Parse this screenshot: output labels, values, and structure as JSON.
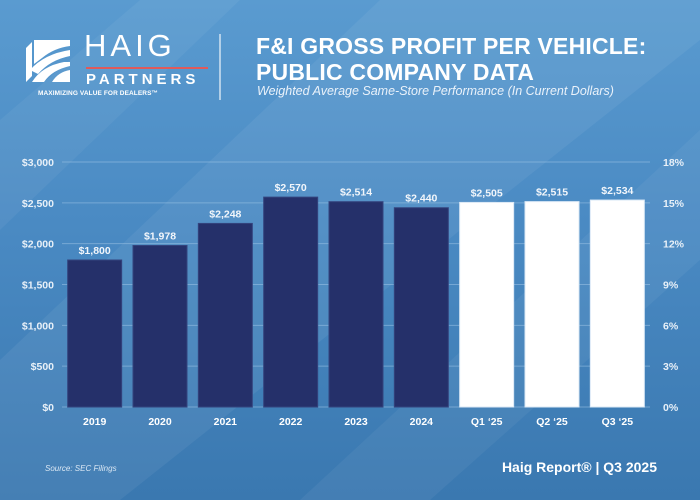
{
  "brand": {
    "name": "HAIG",
    "sub": "PARTNERS",
    "tagline": "MAXIMIZING VALUE FOR DEALERS™",
    "accent_color": "#e05a5a"
  },
  "header": {
    "title_line1": "F&I GROSS PROFIT PER VEHICLE:",
    "title_line2": "PUBLIC COMPANY DATA",
    "subtitle": "Weighted Average Same-Store Performance (In Current Dollars)"
  },
  "footer": {
    "source": "Source: SEC Filings",
    "report": "Haig Report® | Q3 2025"
  },
  "colors": {
    "annual_bar": "#25306a",
    "quarterly_bar": "#ffffff",
    "gridline": "#9cc3e6"
  },
  "chart_data": {
    "type": "bar",
    "title": "F&I GROSS PROFIT PER VEHICLE: PUBLIC COMPANY DATA",
    "subtitle": "Weighted Average Same-Store Performance (In Current Dollars)",
    "xlabel": "",
    "ylabel": "",
    "categories": [
      "2019",
      "2020",
      "2021",
      "2022",
      "2023",
      "2024",
      "Q1 '25",
      "Q2 '25",
      "Q3 '25"
    ],
    "display_categories": [
      "2019",
      "2020",
      "2021",
      "2022",
      "2023",
      "2024",
      "Q1 ‘25",
      "Q2 ‘25",
      "Q3 ‘25"
    ],
    "series": [
      {
        "name": "F&I Gross Profit per Vehicle",
        "values": [
          1800,
          1978,
          2248,
          2570,
          2514,
          2440,
          2505,
          2515,
          2534
        ],
        "labels": [
          "$1,800",
          "$1,978",
          "$2,248",
          "$2,570",
          "$2,514",
          "$2,440",
          "$2,505",
          "$2,515",
          "$2,534"
        ],
        "period_type": [
          "annual",
          "annual",
          "annual",
          "annual",
          "annual",
          "annual",
          "quarterly",
          "quarterly",
          "quarterly"
        ]
      }
    ],
    "ylim": [
      0,
      3000
    ],
    "yticks": [
      0,
      500,
      1000,
      1500,
      2000,
      2500,
      3000
    ],
    "ytick_labels": [
      "$0",
      "$500",
      "$1,000",
      "$1,500",
      "$2,000",
      "$2,500",
      "$3,000"
    ],
    "y2lim": [
      0,
      18
    ],
    "y2ticks": [
      0,
      3,
      6,
      9,
      12,
      15,
      18
    ],
    "y2tick_labels": [
      "0%",
      "3%",
      "6%",
      "9%",
      "12%",
      "15%",
      "18%"
    ],
    "grid": true,
    "legend": "none"
  }
}
